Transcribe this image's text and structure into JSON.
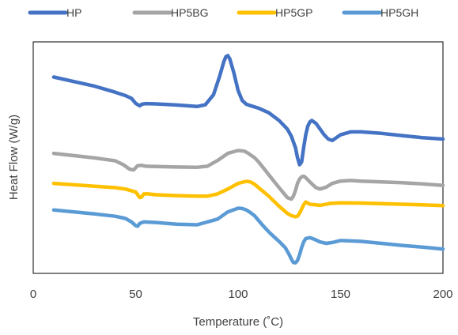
{
  "chart_data": {
    "type": "line",
    "title": "",
    "xlabel": "Temperature (˚C)",
    "ylabel": "Heat Flow (W/g)",
    "xlim": [
      0,
      200
    ],
    "x_ticks": [
      "0",
      "50",
      "100",
      "150",
      "200"
    ],
    "y_tick_labels": false,
    "grid": false,
    "legend_position": "top",
    "series": [
      {
        "name": "HP",
        "color": "#4472C4",
        "x": [
          10,
          20,
          30,
          40,
          45,
          48,
          50,
          52,
          53,
          55,
          60,
          70,
          80,
          84,
          88,
          91,
          93,
          94,
          95,
          96,
          98,
          100,
          102,
          104,
          106,
          110,
          115,
          120,
          124,
          126,
          128,
          129,
          130,
          131,
          132,
          133,
          134,
          135,
          136,
          138,
          140,
          142,
          144,
          146,
          148,
          150,
          155,
          160,
          170,
          180,
          190,
          200
        ],
        "y": [
          2.67,
          2.51,
          2.35,
          2.14,
          2.02,
          1.92,
          1.75,
          1.66,
          1.72,
          1.74,
          1.73,
          1.69,
          1.64,
          1.7,
          2.05,
          2.7,
          3.2,
          3.38,
          3.42,
          3.3,
          2.8,
          2.2,
          1.85,
          1.72,
          1.67,
          1.58,
          1.42,
          1.15,
          0.85,
          0.6,
          0.2,
          -0.15,
          -0.4,
          -0.3,
          0.2,
          0.65,
          0.95,
          1.1,
          1.15,
          1.05,
          0.85,
          0.65,
          0.5,
          0.45,
          0.55,
          0.65,
          0.75,
          0.75,
          0.7,
          0.62,
          0.55,
          0.5
        ]
      },
      {
        "name": "HP5BG",
        "color": "#A5A5A5",
        "x": [
          10,
          20,
          30,
          40,
          44,
          47,
          49,
          51,
          53,
          55,
          60,
          70,
          80,
          85,
          90,
          95,
          100,
          103,
          105,
          108,
          110,
          115,
          120,
          124,
          126,
          127,
          128,
          129,
          130,
          131,
          132,
          133,
          135,
          138,
          140,
          143,
          146,
          150,
          155,
          160,
          170,
          180,
          190,
          200
        ],
        "y": [
          0.0,
          -0.08,
          -0.16,
          -0.26,
          -0.4,
          -0.55,
          -0.58,
          -0.43,
          -0.42,
          -0.45,
          -0.46,
          -0.48,
          -0.49,
          -0.45,
          -0.25,
          0.0,
          0.1,
          0.08,
          0.0,
          -0.15,
          -0.3,
          -0.75,
          -1.2,
          -1.55,
          -1.6,
          -1.5,
          -1.3,
          -1.05,
          -0.9,
          -0.82,
          -0.8,
          -0.85,
          -1.0,
          -1.2,
          -1.25,
          -1.18,
          -1.05,
          -0.97,
          -0.95,
          -0.97,
          -1.0,
          -1.03,
          -1.07,
          -1.12
        ]
      },
      {
        "name": "HP5GP",
        "color": "#FFC000",
        "x": [
          10,
          20,
          30,
          40,
          45,
          50,
          52,
          53,
          54,
          56,
          60,
          70,
          80,
          85,
          90,
          95,
          100,
          104,
          106,
          108,
          110,
          115,
          120,
          124,
          126,
          128,
          129,
          130,
          131,
          132,
          133,
          135,
          140,
          145,
          150,
          160,
          170,
          180,
          190,
          200
        ],
        "y": [
          -1.05,
          -1.1,
          -1.15,
          -1.2,
          -1.25,
          -1.35,
          -1.55,
          -1.52,
          -1.42,
          -1.42,
          -1.45,
          -1.48,
          -1.5,
          -1.5,
          -1.42,
          -1.25,
          -1.05,
          -0.98,
          -1.0,
          -1.08,
          -1.2,
          -1.5,
          -1.85,
          -2.1,
          -2.18,
          -2.22,
          -2.2,
          -2.1,
          -1.95,
          -1.8,
          -1.7,
          -1.78,
          -1.82,
          -1.75,
          -1.73,
          -1.74,
          -1.76,
          -1.78,
          -1.8,
          -1.83
        ]
      },
      {
        "name": "HP5GH",
        "color": "#5B9BD5",
        "x": [
          10,
          20,
          30,
          40,
          45,
          48,
          50,
          51,
          52,
          54,
          60,
          70,
          80,
          90,
          95,
          100,
          102,
          104,
          106,
          108,
          110,
          112,
          115,
          118,
          120,
          123,
          125,
          126,
          127,
          128,
          129,
          130,
          131,
          132,
          133,
          135,
          137,
          140,
          143,
          146,
          150,
          160,
          170,
          180,
          190,
          200
        ],
        "y": [
          -1.98,
          -2.05,
          -2.12,
          -2.2,
          -2.28,
          -2.4,
          -2.53,
          -2.55,
          -2.45,
          -2.4,
          -2.42,
          -2.48,
          -2.5,
          -2.3,
          -2.05,
          -1.92,
          -1.93,
          -1.98,
          -2.07,
          -2.18,
          -2.35,
          -2.52,
          -2.75,
          -2.95,
          -3.08,
          -3.3,
          -3.55,
          -3.7,
          -3.82,
          -3.83,
          -3.75,
          -3.55,
          -3.3,
          -3.1,
          -2.98,
          -2.95,
          -3.0,
          -3.1,
          -3.15,
          -3.12,
          -3.05,
          -3.08,
          -3.15,
          -3.22,
          -3.28,
          -3.35
        ]
      }
    ]
  }
}
